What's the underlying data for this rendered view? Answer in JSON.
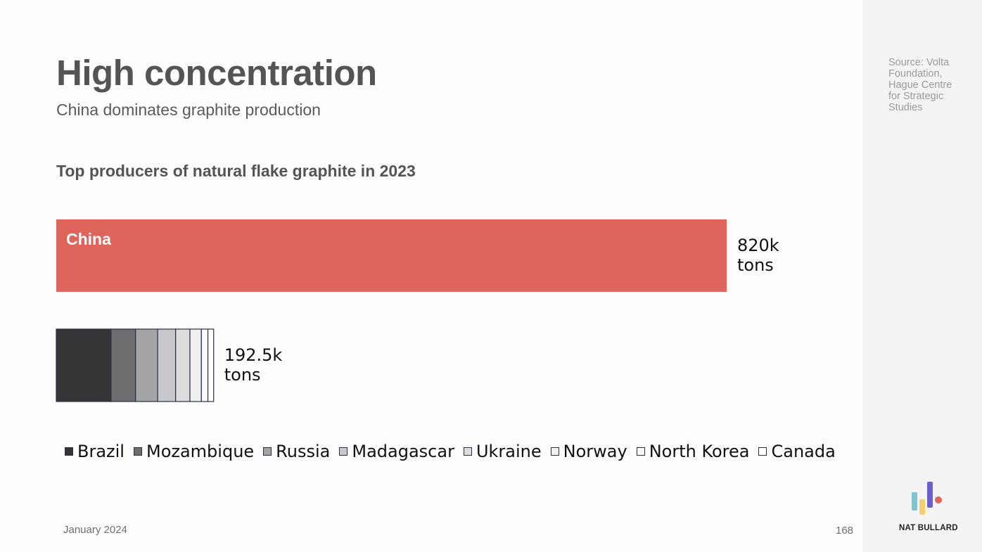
{
  "header": {
    "title": "High concentration",
    "subtitle": "China dominates graphite production"
  },
  "sidebar": {
    "source": "Source: Volta Foundation, Hague Centre for Strategic Studies",
    "brand": "NAT BULLARD",
    "logo_icon": "bar-chart-logo-icon"
  },
  "footer": {
    "date": "January 2024",
    "page_number": "168"
  },
  "chart_data": {
    "type": "bar",
    "orientation": "horizontal",
    "title": "Top producers of natural flake graphite in 2023",
    "xlabel": "",
    "ylabel": "",
    "grid": false,
    "legend_placement": "bottom",
    "bars": [
      {
        "label": "China",
        "total_label": "820k",
        "unit": "tons",
        "color": "#de645c",
        "segments": [
          {
            "name": "China",
            "value": 820000
          }
        ]
      },
      {
        "label": "",
        "total_label": "192.5k",
        "unit": "tons",
        "segments": [
          {
            "name": "Brazil",
            "value": 67000
          },
          {
            "name": "Mozambique",
            "value": 30000
          },
          {
            "name": "Russia",
            "value": 27000
          },
          {
            "name": "Madagascar",
            "value": 22000
          },
          {
            "name": "Ukraine",
            "value": 17500
          },
          {
            "name": "Norway",
            "value": 14000
          },
          {
            "name": "North Korea",
            "value": 8000
          },
          {
            "name": "Canada",
            "value": 7000
          }
        ]
      }
    ],
    "legend": [
      {
        "name": "Brazil",
        "color": "#353535"
      },
      {
        "name": "Mozambique",
        "color": "#6e6e6e"
      },
      {
        "name": "Russia",
        "color": "#a4a4a4"
      },
      {
        "name": "Madagascar",
        "color": "#c8c8cc"
      },
      {
        "name": "Ukraine",
        "color": "#dcdcdc"
      },
      {
        "name": "Norway",
        "color": "#f0f0f0"
      },
      {
        "name": "North Korea",
        "color": "#fafafa"
      },
      {
        "name": "Canada",
        "color": "#ffffff"
      }
    ]
  }
}
